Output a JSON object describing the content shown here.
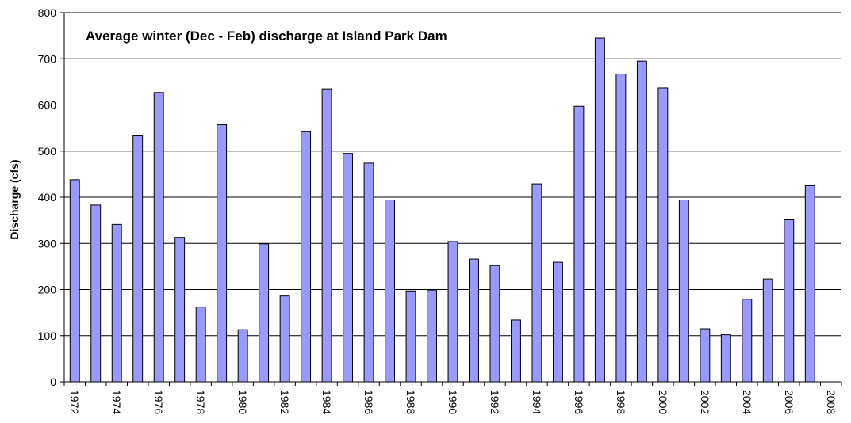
{
  "chart_data": {
    "type": "bar",
    "title": "Average winter (Dec - Feb) discharge at Island Park Dam",
    "xlabel": "",
    "ylabel": "Discharge (cfs)",
    "ylim": [
      0,
      800
    ],
    "yticks": [
      0,
      100,
      200,
      300,
      400,
      500,
      600,
      700,
      800
    ],
    "ytick_labels": [
      "0",
      "100",
      "200",
      "300",
      "400",
      "500",
      "600",
      "700",
      "800"
    ],
    "grid": "horizontal",
    "legend": "none",
    "bar_color": "#9999ff",
    "bar_edge_color": "#000000",
    "categories": [
      "1972",
      "1973",
      "1974",
      "1975",
      "1976",
      "1977",
      "1978",
      "1979",
      "1980",
      "1981",
      "1982",
      "1983",
      "1984",
      "1985",
      "1986",
      "1987",
      "1988",
      "1989",
      "1990",
      "1991",
      "1992",
      "1993",
      "1994",
      "1995",
      "1996",
      "1997",
      "1998",
      "1999",
      "2000",
      "2001",
      "2002",
      "2003",
      "2004",
      "2005",
      "2006",
      "2007",
      "2008"
    ],
    "tick_labels": [
      "1972",
      "",
      "1974",
      "",
      "1976",
      "",
      "1978",
      "",
      "1980",
      "",
      "1982",
      "",
      "1984",
      "",
      "1986",
      "",
      "1988",
      "",
      "1990",
      "",
      "1992",
      "",
      "1994",
      "",
      "1996",
      "",
      "1998",
      "",
      "2000",
      "",
      "2002",
      "",
      "2004",
      "",
      "2006",
      "",
      "2008"
    ],
    "values": [
      438,
      383,
      341,
      533,
      627,
      313,
      162,
      557,
      113,
      299,
      186,
      542,
      635,
      495,
      474,
      394,
      197,
      199,
      304,
      266,
      252,
      134,
      429,
      259,
      597,
      745,
      667,
      695,
      637,
      394,
      115,
      102,
      179,
      223,
      351,
      425,
      null
    ]
  }
}
